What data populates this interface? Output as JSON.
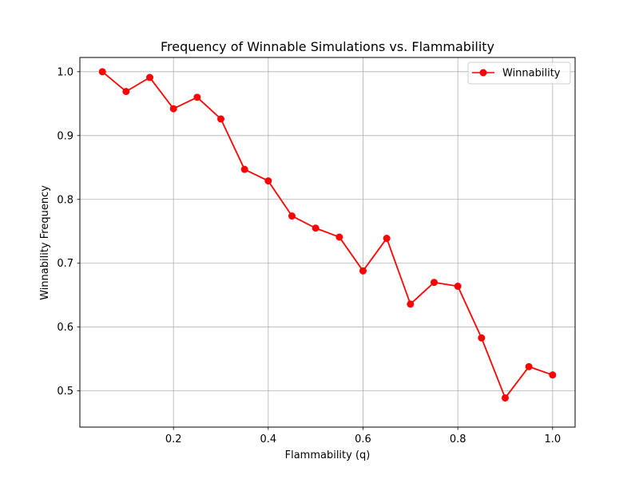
{
  "chart_data": {
    "type": "line",
    "title": "Frequency of Winnable Simulations vs. Flammability",
    "xlabel": "Flammability (q)",
    "ylabel": "Winnability Frequency",
    "x": [
      0.05,
      0.1,
      0.15,
      0.2,
      0.25,
      0.3,
      0.35,
      0.4,
      0.45,
      0.5,
      0.55,
      0.6,
      0.65,
      0.7,
      0.75,
      0.8,
      0.85,
      0.9,
      0.95,
      1.0
    ],
    "series": [
      {
        "name": "Winnability",
        "color": "#ff0000",
        "values": [
          1.0,
          0.969,
          0.991,
          0.942,
          0.96,
          0.926,
          0.847,
          0.829,
          0.774,
          0.755,
          0.741,
          0.688,
          0.739,
          0.636,
          0.67,
          0.664,
          0.583,
          0.489,
          0.538,
          0.525
        ]
      }
    ],
    "xlim": [
      0.0025,
      1.0475
    ],
    "ylim": [
      0.4433,
      1.0223
    ],
    "xticks": [
      0.2,
      0.4,
      0.6,
      0.8,
      1.0
    ],
    "xtick_labels": [
      "0.2",
      "0.4",
      "0.6",
      "0.8",
      "1.0"
    ],
    "yticks": [
      0.5,
      0.6,
      0.7,
      0.8,
      0.9,
      1.0
    ],
    "ytick_labels": [
      "0.5",
      "0.6",
      "0.7",
      "0.8",
      "0.9",
      "1.0"
    ],
    "grid": true,
    "legend_position": "top-right",
    "marker": "circle"
  }
}
